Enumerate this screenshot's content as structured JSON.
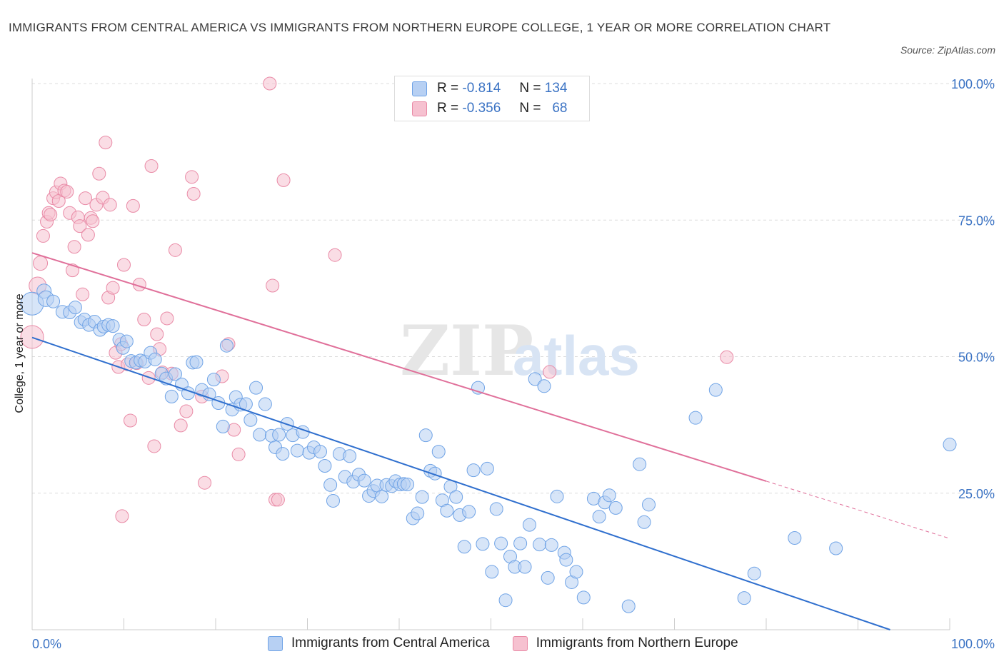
{
  "title": "IMMIGRANTS FROM CENTRAL AMERICA VS IMMIGRANTS FROM NORTHERN EUROPE COLLEGE, 1 YEAR OR MORE CORRELATION CHART",
  "source": "Source: ZipAtlas.com",
  "watermark": {
    "zip": "ZIP",
    "atlas": "atlas"
  },
  "legend": {
    "rows": [
      {
        "r_label": "R =",
        "r_value": "-0.814",
        "n_label": "N =",
        "n_value": "134"
      },
      {
        "r_label": "R =",
        "r_value": "-0.356",
        "n_label": "N =",
        "n_value": "68"
      }
    ]
  },
  "colors": {
    "blue": "#6fa3e6",
    "blue_fill": "#b7d0f3",
    "blue_line": "#2f6fce",
    "pink": "#e98aa6",
    "pink_fill": "#f6c1d0",
    "pink_line": "#e0709a",
    "tick_text": "#3b73c4"
  },
  "chart_data": {
    "type": "scatter",
    "title": "IMMIGRANTS FROM CENTRAL AMERICA VS IMMIGRANTS FROM NORTHERN EUROPE COLLEGE, 1 YEAR OR MORE CORRELATION CHART",
    "xlabel": "",
    "ylabel": "College, 1 year or more",
    "xlim": [
      0,
      100
    ],
    "ylim": [
      0,
      100
    ],
    "x_tick_labels": [
      "0.0%",
      "100.0%"
    ],
    "y_tick_labels": [
      "25.0%",
      "50.0%",
      "75.0%",
      "100.0%"
    ],
    "y_ticks": [
      25,
      50,
      75,
      100
    ],
    "grid": "horizontal dashed",
    "legend_position": "top-center",
    "series": [
      {
        "name": "Immigrants from Central America",
        "color": "#6fa3e6",
        "r": -0.814,
        "n": 134,
        "trend": {
          "x0": 0,
          "y0": 53.5,
          "x1": 93.5,
          "y1": 0
        },
        "points": [
          [
            0,
            59.7,
            16
          ],
          [
            1.3,
            62,
            10
          ],
          [
            1.5,
            60.6,
            11
          ],
          [
            2.3,
            60.1,
            9
          ],
          [
            3.3,
            58.2,
            9
          ],
          [
            4.1,
            58.1,
            9
          ],
          [
            4.7,
            59,
            9
          ],
          [
            5.3,
            56.3,
            9
          ],
          [
            5.7,
            56.8,
            9
          ],
          [
            6.2,
            55.8,
            9
          ],
          [
            6.8,
            56.4,
            9
          ],
          [
            7.4,
            54.9,
            9
          ],
          [
            7.8,
            55.5,
            9
          ],
          [
            8.3,
            55.8,
            9
          ],
          [
            8.8,
            55.6,
            9
          ],
          [
            9.5,
            53.1,
            9
          ],
          [
            9.9,
            51.6,
            9
          ],
          [
            10.3,
            52.8,
            9
          ],
          [
            10.8,
            49.2,
            9
          ],
          [
            11.3,
            48.9,
            9
          ],
          [
            11.8,
            49.3,
            9
          ],
          [
            12.3,
            49.1,
            9
          ],
          [
            12.9,
            50.7,
            9
          ],
          [
            13.4,
            49.5,
            9
          ],
          [
            14.1,
            46.9,
            9
          ],
          [
            14.6,
            46,
            9
          ],
          [
            15.2,
            42.7,
            9
          ],
          [
            15.6,
            46.8,
            9
          ],
          [
            16.3,
            44.9,
            9
          ],
          [
            17,
            43.3,
            9
          ],
          [
            17.5,
            48.9,
            9
          ],
          [
            17.9,
            49,
            9
          ],
          [
            18.5,
            43.9,
            9
          ],
          [
            19.3,
            43.1,
            9
          ],
          [
            19.8,
            45.8,
            9
          ],
          [
            20.3,
            41.5,
            9
          ],
          [
            20.8,
            37.2,
            9
          ],
          [
            21.2,
            52,
            9
          ],
          [
            21.8,
            40.3,
            9
          ],
          [
            22.2,
            42.6,
            9
          ],
          [
            22.7,
            41.2,
            9
          ],
          [
            23.3,
            41.3,
            9
          ],
          [
            23.8,
            38.4,
            9
          ],
          [
            24.4,
            44.3,
            9
          ],
          [
            24.8,
            35.7,
            9
          ],
          [
            25.4,
            41.3,
            9
          ],
          [
            26.1,
            35.5,
            9
          ],
          [
            26.5,
            33.4,
            9
          ],
          [
            26.9,
            35.7,
            9
          ],
          [
            27.3,
            32.2,
            9
          ],
          [
            27.8,
            37.7,
            9
          ],
          [
            28.4,
            35.6,
            9
          ],
          [
            28.9,
            32.8,
            9
          ],
          [
            29.5,
            36.2,
            9
          ],
          [
            30.2,
            32.4,
            9
          ],
          [
            30.7,
            33.4,
            9
          ],
          [
            31.4,
            32.6,
            9
          ],
          [
            31.9,
            30,
            9
          ],
          [
            32.5,
            26.5,
            9
          ],
          [
            32.8,
            23.6,
            9
          ],
          [
            33.5,
            32.2,
            9
          ],
          [
            34.1,
            28,
            9
          ],
          [
            34.6,
            31.8,
            9
          ],
          [
            35,
            27.1,
            9
          ],
          [
            35.6,
            28.4,
            9
          ],
          [
            36.2,
            27.3,
            9
          ],
          [
            36.7,
            24.5,
            9
          ],
          [
            37.2,
            25.4,
            9
          ],
          [
            37.6,
            26.4,
            9
          ],
          [
            38.1,
            24.4,
            9
          ],
          [
            38.6,
            26.5,
            9
          ],
          [
            39.2,
            26.3,
            9
          ],
          [
            39.6,
            27.2,
            9
          ],
          [
            40.1,
            26.6,
            9
          ],
          [
            40.5,
            26.7,
            9
          ],
          [
            40.9,
            26.6,
            9
          ],
          [
            41.5,
            20.4,
            9
          ],
          [
            42,
            21.3,
            9
          ],
          [
            42.5,
            24.3,
            9
          ],
          [
            42.9,
            35.6,
            9
          ],
          [
            43.4,
            29.1,
            9
          ],
          [
            43.9,
            28.6,
            9
          ],
          [
            44.3,
            32.6,
            9
          ],
          [
            44.7,
            23.7,
            9
          ],
          [
            45.2,
            21.8,
            9
          ],
          [
            45.6,
            26.2,
            9
          ],
          [
            46.2,
            24.3,
            9
          ],
          [
            46.6,
            21,
            9
          ],
          [
            47.1,
            15.2,
            9
          ],
          [
            47.6,
            21.6,
            9
          ],
          [
            48.1,
            29.2,
            9
          ],
          [
            48.6,
            44.3,
            9
          ],
          [
            49.1,
            15.7,
            9
          ],
          [
            49.6,
            29.5,
            9
          ],
          [
            50.1,
            10.6,
            9
          ],
          [
            50.6,
            22.1,
            9
          ],
          [
            51.1,
            15.8,
            9
          ],
          [
            51.6,
            5.4,
            9
          ],
          [
            52.1,
            13.4,
            9
          ],
          [
            52.6,
            11.5,
            9
          ],
          [
            53.2,
            15.8,
            9
          ],
          [
            53.7,
            11.5,
            9
          ],
          [
            54.2,
            19.2,
            9
          ],
          [
            54.8,
            45.9,
            9
          ],
          [
            55.3,
            15.6,
            9
          ],
          [
            55.8,
            44.6,
            9
          ],
          [
            56.2,
            9.5,
            9
          ],
          [
            56.6,
            15.5,
            9
          ],
          [
            57.2,
            24.4,
            9
          ],
          [
            58,
            14.1,
            9
          ],
          [
            58.2,
            12.8,
            9
          ],
          [
            58.8,
            8.7,
            9
          ],
          [
            59.3,
            10.6,
            9
          ],
          [
            60.1,
            5.9,
            9
          ],
          [
            61.2,
            24,
            9
          ],
          [
            61.8,
            20.7,
            9
          ],
          [
            62.4,
            23.3,
            9
          ],
          [
            62.9,
            24.6,
            9
          ],
          [
            63.6,
            22.3,
            9
          ],
          [
            65,
            4.3,
            9
          ],
          [
            66.2,
            30.3,
            9
          ],
          [
            66.7,
            19.7,
            9
          ],
          [
            67.2,
            22.9,
            9
          ],
          [
            72.3,
            38.8,
            9
          ],
          [
            74.5,
            43.9,
            9
          ],
          [
            77.6,
            5.8,
            9
          ],
          [
            78.7,
            10.3,
            9
          ],
          [
            83.1,
            16.8,
            9
          ],
          [
            87.6,
            14.9,
            9
          ],
          [
            100,
            33.9,
            9
          ]
        ]
      },
      {
        "name": "Immigrants from Northern Europe",
        "color": "#e98aa6",
        "r": -0.356,
        "n": 68,
        "trend": {
          "x0": 0,
          "y0": 69,
          "x1": 80,
          "y1": 27.2,
          "dash_x1": 100,
          "dash_y1": 16.7
        },
        "points": [
          [
            0,
            53.6,
            16
          ],
          [
            0.6,
            63,
            12
          ],
          [
            0.9,
            67.1,
            10
          ],
          [
            1.2,
            72.1,
            9
          ],
          [
            1.6,
            74.7,
            9
          ],
          [
            1.8,
            76.3,
            9
          ],
          [
            2,
            76,
            9
          ],
          [
            2.3,
            79,
            9
          ],
          [
            2.6,
            80.1,
            9
          ],
          [
            2.9,
            78.5,
            9
          ],
          [
            3.1,
            81.7,
            9
          ],
          [
            3.5,
            80.4,
            9
          ],
          [
            3.8,
            80.2,
            9
          ],
          [
            4.1,
            76.3,
            9
          ],
          [
            4.4,
            65.8,
            9
          ],
          [
            4.6,
            70.1,
            9
          ],
          [
            5,
            75.5,
            9
          ],
          [
            5.2,
            73.9,
            9
          ],
          [
            5.5,
            61.4,
            9
          ],
          [
            5.8,
            79,
            9
          ],
          [
            6.1,
            72.3,
            9
          ],
          [
            6.4,
            75.4,
            9
          ],
          [
            6.6,
            74.8,
            9
          ],
          [
            7,
            77.8,
            9
          ],
          [
            7.3,
            83.5,
            9
          ],
          [
            7.7,
            79.1,
            9
          ],
          [
            8,
            89.2,
            9
          ],
          [
            8.3,
            60.8,
            9
          ],
          [
            8.5,
            77.8,
            9
          ],
          [
            8.8,
            62.6,
            9
          ],
          [
            9.1,
            50.7,
            9
          ],
          [
            9.4,
            48.1,
            9
          ],
          [
            9.7,
            52.3,
            9
          ],
          [
            10,
            66.8,
            9
          ],
          [
            10.4,
            48.6,
            9
          ],
          [
            10.7,
            38.3,
            9
          ],
          [
            11,
            77.6,
            9
          ],
          [
            11.4,
            48.8,
            9
          ],
          [
            11.7,
            63.2,
            9
          ],
          [
            12.2,
            56.8,
            9
          ],
          [
            12.7,
            46.1,
            9
          ],
          [
            13,
            84.9,
            9
          ],
          [
            13.3,
            33.6,
            9
          ],
          [
            13.6,
            54.1,
            9
          ],
          [
            13.9,
            51.4,
            9
          ],
          [
            14.2,
            47.1,
            9
          ],
          [
            14.7,
            57,
            9
          ],
          [
            15.2,
            46.9,
            9
          ],
          [
            15.6,
            69.5,
            9
          ],
          [
            16.2,
            37.4,
            9
          ],
          [
            16.8,
            40,
            9
          ],
          [
            17.4,
            82.9,
            9
          ],
          [
            17.6,
            79.8,
            9
          ],
          [
            18.5,
            42.7,
            9
          ],
          [
            18.8,
            26.9,
            9
          ],
          [
            20.7,
            46.4,
            9
          ],
          [
            21.4,
            52.3,
            9
          ],
          [
            22,
            36.6,
            9
          ],
          [
            22.5,
            32.1,
            9
          ],
          [
            9.8,
            20.8,
            9
          ],
          [
            25.9,
            100,
            9
          ],
          [
            26.2,
            63,
            9
          ],
          [
            26.5,
            23.8,
            9
          ],
          [
            26.8,
            23.8,
            9
          ],
          [
            27.4,
            82.3,
            9
          ],
          [
            33,
            68.6,
            9
          ],
          [
            56.4,
            47.2,
            9
          ],
          [
            75.7,
            49.9,
            9
          ]
        ]
      }
    ]
  },
  "bottom_legend": {
    "items": [
      {
        "label": "Immigrants from Central America"
      },
      {
        "label": "Immigrants from Northern Europe"
      }
    ]
  },
  "axis": {
    "x_left_label": "0.0%",
    "x_right_label": "100.0%",
    "y_labels": [
      "25.0%",
      "50.0%",
      "75.0%",
      "100.0%"
    ]
  }
}
